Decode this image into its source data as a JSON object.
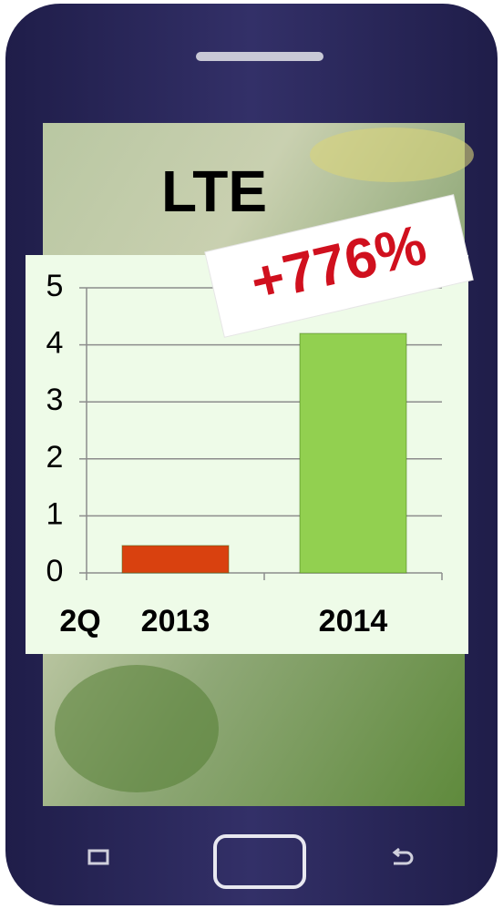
{
  "chart_data": {
    "type": "bar",
    "title": "LTE",
    "annotation": "+776%",
    "x_label": "2Q",
    "categories": [
      "2013",
      "2014"
    ],
    "values": [
      0.48,
      4.2
    ],
    "colors": [
      "#d9410f",
      "#92d050"
    ],
    "ylim": [
      0,
      5
    ],
    "yticks": [
      0,
      1,
      2,
      3,
      4,
      5
    ],
    "grid": true
  }
}
